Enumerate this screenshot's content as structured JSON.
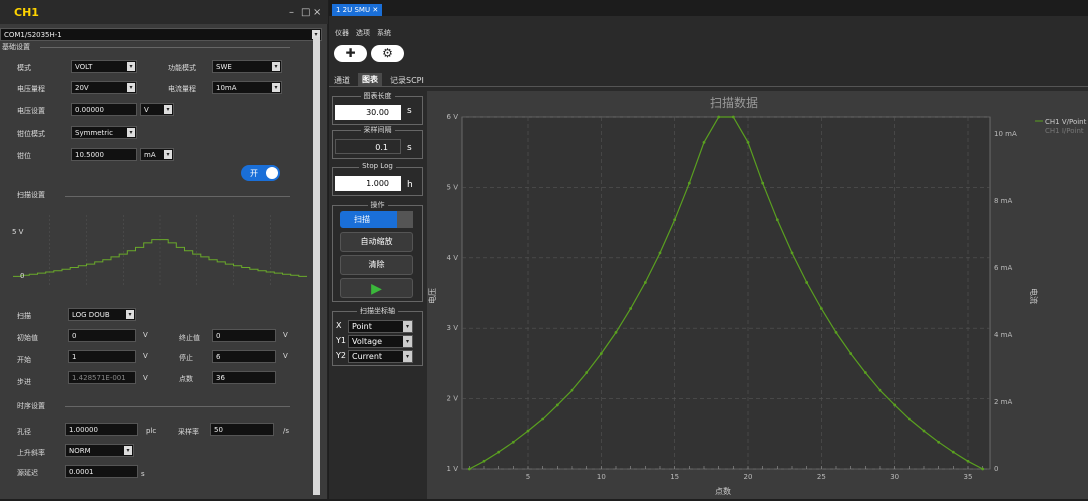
{
  "left": {
    "title": "CH1",
    "window_controls": [
      "–",
      "□",
      "×"
    ],
    "port": "COM1/S2035H-1",
    "basic_section": "基础设置",
    "mode_label": "模式",
    "mode_value": "VOLT",
    "func_label": "功能模式",
    "func_value": "SWE",
    "vrange_label": "电压量程",
    "vrange_value": "20V",
    "irange_label": "电流量程",
    "irange_value": "10mA",
    "vset_label": "电压设置",
    "vset_value": "0.00000",
    "vset_unit": "V",
    "clamp_mode_label": "钳位模式",
    "clamp_mode_value": "Symmetric",
    "clamp_label": "钳位",
    "clamp_value": "10.5000",
    "clamp_unit": "mA",
    "toggle_label": "开",
    "sweep_section": "扫描设置",
    "preview_ylabel_top": "5 V",
    "preview_ylabel_bottom": "0",
    "sweep_label": "扫描",
    "sweep_value": "LOG DOUB",
    "start_val_label": "初始值",
    "start_val": "0",
    "start_val_unit": "V",
    "stop_val_label": "终止值",
    "stop_val": "0",
    "stop_val_unit": "V",
    "begin_label": "开始",
    "begin_val": "1",
    "begin_unit": "V",
    "end_label": "停止",
    "end_val": "6",
    "end_unit": "V",
    "step_label": "步进",
    "step_val": "1.428571E-001",
    "step_unit": "V",
    "points_label": "点数",
    "points_val": "36",
    "timing_section": "时序设置",
    "aperture_label": "孔径",
    "aperture_val": "1.00000",
    "aperture_unit": "plc",
    "rate_label": "采样率",
    "rate_val": "50",
    "rate_unit": "/s",
    "slew_label": "上升斜率",
    "slew_val": "NORM",
    "delay_label": "源延迟",
    "delay_val": "0.0001",
    "delay_unit": "s"
  },
  "right": {
    "tab": "1 2U SMU",
    "menu": [
      "仪器",
      "选项",
      "系统"
    ],
    "add_icon": "plus-icon",
    "settings_icon": "gear-icon",
    "subtabs": [
      "通道",
      "图表",
      "记录SCPI"
    ],
    "chart_len_label": "图表长度",
    "chart_len_value": "30.00",
    "chart_len_unit": "s",
    "sample_label": "采样间隔",
    "sample_value": "0.1",
    "sample_unit": "s",
    "stoplog_label": "Stop Log",
    "stoplog_value": "1.000",
    "stoplog_unit": "h",
    "ops_label": "操作",
    "scan_btn": "扫描",
    "autoscale_btn": "自动缩放",
    "clear_btn": "清除",
    "run_icon": "play-icon",
    "axis_group_label": "扫描坐标轴",
    "x_label": "X",
    "x_value": "Point",
    "y1_label": "Y1",
    "y1_value": "Voltage",
    "y2_label": "Y2",
    "y2_value": "Current"
  },
  "chart_data": {
    "type": "line",
    "title": "扫描数据",
    "xlabel": "点数",
    "ylabel": "电压",
    "y2label": "电流",
    "xlim": [
      0.5,
      36.5
    ],
    "ylim": [
      1,
      6
    ],
    "y2lim": [
      0,
      10.5
    ],
    "xticks": [
      5,
      10,
      15,
      20,
      25,
      30,
      35
    ],
    "yticks": [
      1,
      2,
      3,
      4,
      5,
      6
    ],
    "ytick_labels": [
      "1 V",
      "2 V",
      "3 V",
      "4 V",
      "5 V",
      "6 V"
    ],
    "y2ticks": [
      0,
      2,
      4,
      6,
      8,
      10
    ],
    "y2tick_labels": [
      "0",
      "2 mA",
      "4 mA",
      "6 mA",
      "8 mA",
      "10 mA"
    ],
    "legend": [
      "CH1 V/Point",
      "CH1 I/Point"
    ],
    "legend_position": "top-right",
    "grid": true,
    "series": [
      {
        "name": "CH1 V/Point",
        "color": "#5aa020",
        "x": [
          1,
          2,
          3,
          4,
          5,
          6,
          7,
          8,
          9,
          10,
          11,
          12,
          13,
          14,
          15,
          16,
          17,
          18,
          19,
          20,
          21,
          22,
          23,
          24,
          25,
          26,
          27,
          28,
          29,
          30,
          31,
          32,
          33,
          34,
          35,
          36
        ],
        "values": [
          1.0,
          1.11,
          1.24,
          1.38,
          1.54,
          1.71,
          1.91,
          2.12,
          2.37,
          2.64,
          2.94,
          3.28,
          3.65,
          4.07,
          4.54,
          5.06,
          5.64,
          6.0,
          6.0,
          5.64,
          5.06,
          4.54,
          4.07,
          3.65,
          3.28,
          2.94,
          2.64,
          2.37,
          2.12,
          1.91,
          1.71,
          1.54,
          1.38,
          1.24,
          1.11,
          1.0
        ]
      }
    ],
    "preview_values": [
      0.5,
      0.6,
      0.7,
      0.8,
      0.9,
      1.0,
      1.15,
      1.3,
      1.45,
      1.6,
      1.8,
      2.0,
      2.25,
      2.5,
      2.8,
      3.1,
      3.5,
      3.8,
      3.8,
      3.5,
      3.1,
      2.8,
      2.5,
      2.25,
      2.0,
      1.8,
      1.6,
      1.45,
      1.3,
      1.15,
      1.0,
      0.9,
      0.8,
      0.7,
      0.6,
      0.5
    ]
  }
}
